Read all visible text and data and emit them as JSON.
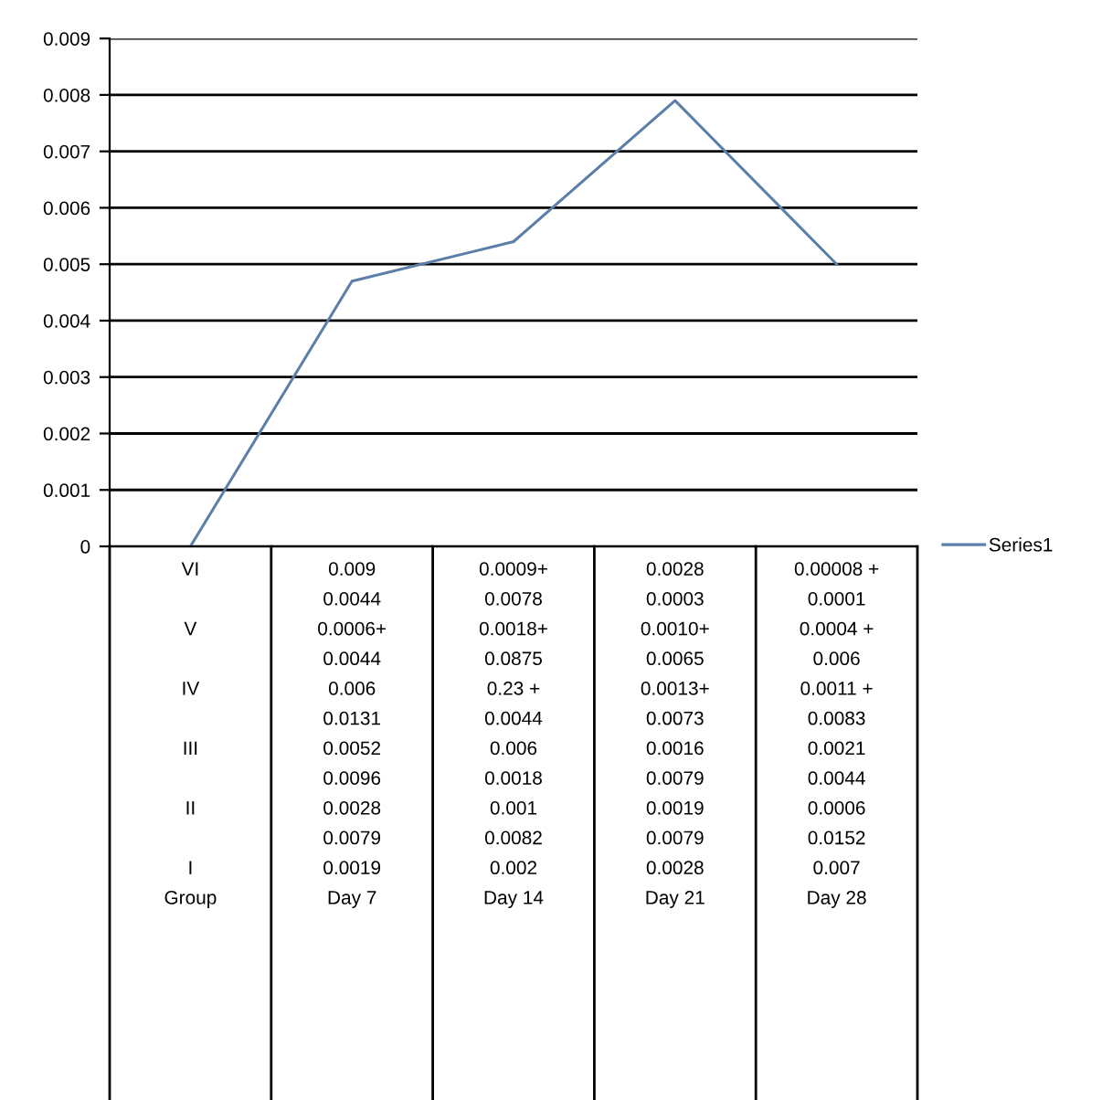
{
  "chart_data": {
    "type": "line",
    "categories": [
      "VI\n\nV\n\nIV\n\nIII\n\nII\n\nI\nGroup",
      "0.009\n0.0044\n0.0006+\n0.0044\n0.006\n0.0131\n0.0052\n0.0096\n0.0028\n0.0079\n0.0019\nDay 7",
      "0.0009+\n0.0078\n0.0018+\n0.0875\n0.23 +\n0.0044\n0.006\n0.0018\n0.001\n0.0082\n0.002\nDay 14",
      "0.0028\n0.0003\n0.0010+\n0.0065\n0.0013+\n0.0073\n0.0016\n0.0079\n0.0019\n0.0079\n0.0028\nDay 21",
      "0.00008 +\n0.0001\n0.0004 +\n0.006\n0.0011 +\n0.0083\n0.0021\n0.0044\n0.0006\n0.0152\n0.007\nDay 28"
    ],
    "series": [
      {
        "name": "Series1",
        "color": "#5b7fa8",
        "values": [
          0,
          0.0047,
          0.0054,
          0.0079,
          0.005
        ]
      }
    ],
    "ylim": [
      0,
      0.009
    ],
    "yticks": [
      0,
      0.001,
      0.002,
      0.003,
      0.004,
      0.005,
      0.006,
      0.007,
      0.008,
      0.009
    ],
    "grid": "y",
    "legend": "right",
    "marker": "none",
    "line_style": "solid"
  }
}
